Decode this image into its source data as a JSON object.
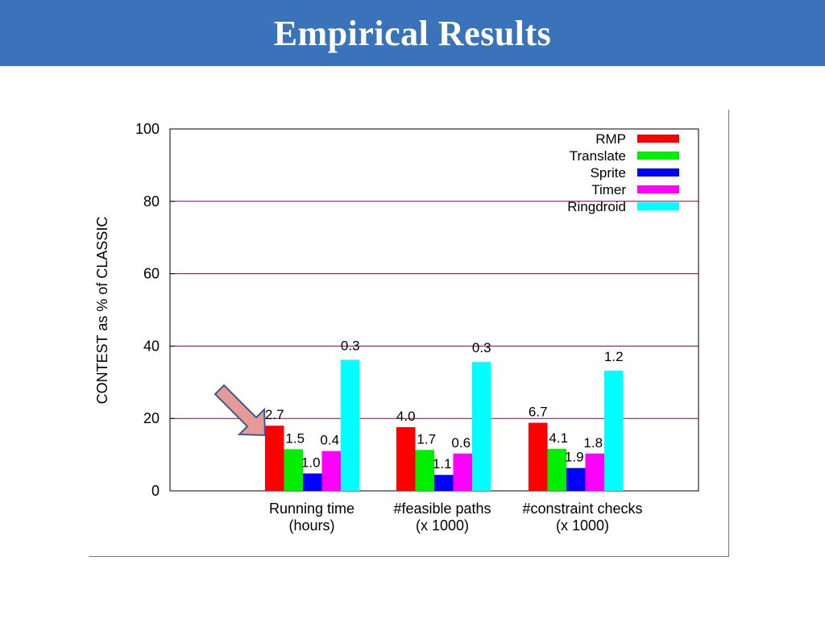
{
  "slide": {
    "title": "Empirical Results"
  },
  "chart_data": {
    "type": "bar",
    "ylabel": "CONTEST as % of CLASSIC",
    "xlabel": "",
    "ylim": [
      0,
      100
    ],
    "yticks": [
      0,
      20,
      40,
      60,
      80,
      100
    ],
    "grid": "horizontal",
    "legend_position": "top-right",
    "categories": [
      [
        "Running time",
        "(hours)"
      ],
      [
        "#feasible paths",
        "(x 1000)"
      ],
      [
        "#constraint checks",
        "(x 1000)"
      ]
    ],
    "series": [
      {
        "name": "RMP",
        "color": "#ff0000",
        "values": [
          18,
          17.6,
          18.8
        ],
        "labels": [
          "2.7",
          "4.0",
          "6.7"
        ]
      },
      {
        "name": "Translate",
        "color": "#00ee00",
        "values": [
          11.5,
          11.3,
          11.6
        ],
        "labels": [
          "1.5",
          "1.7",
          "4.1"
        ]
      },
      {
        "name": "Sprite",
        "color": "#0000ff",
        "values": [
          4.8,
          4.4,
          6.3
        ],
        "labels": [
          "1.0",
          "1.1",
          "1.9"
        ]
      },
      {
        "name": "Timer",
        "color": "#ff00ff",
        "values": [
          11,
          10.3,
          10.3
        ],
        "labels": [
          "0.4",
          "0.6",
          "1.8"
        ]
      },
      {
        "name": "Ringdroid",
        "color": "#00ffff",
        "values": [
          36.2,
          35.6,
          33.2
        ],
        "labels": [
          "0.3",
          "0.3",
          "1.2"
        ]
      }
    ],
    "gridline_color": "#800060",
    "annotation": {
      "shape": "arrow",
      "color": "#e69a97",
      "points_to": "Running time RMP"
    }
  }
}
